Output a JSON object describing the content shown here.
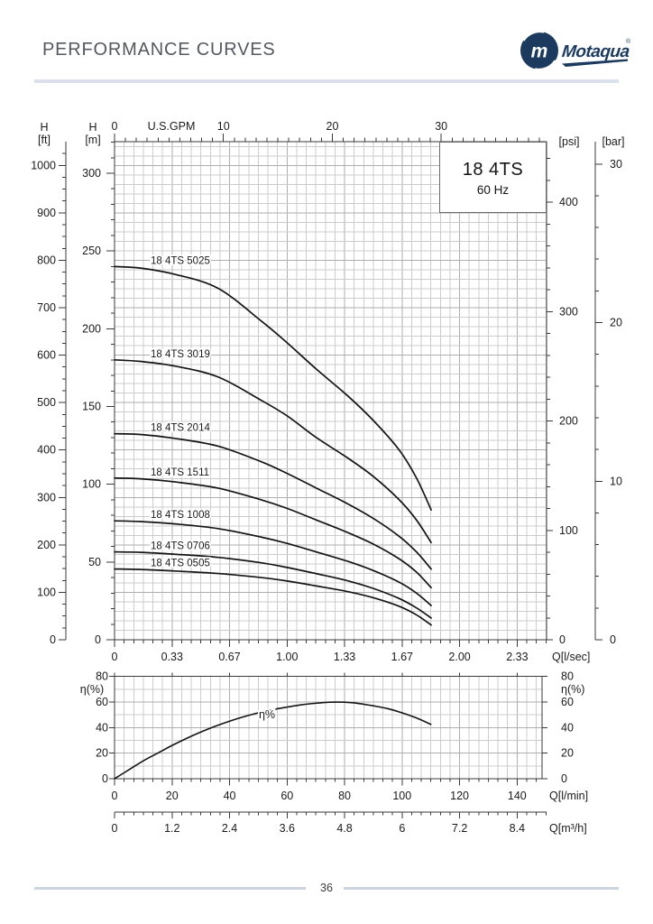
{
  "page": {
    "title": "PERFORMANCE CURVES",
    "page_number": "36"
  },
  "logo": {
    "brand": "Motaqua",
    "monogram": "m",
    "registered": "®"
  },
  "model_box": {
    "model": "18 4TS",
    "frequency": "60 Hz"
  },
  "colors": {
    "brand_navy": "#1b3a5e",
    "curve_black": "#141414",
    "grid_minor": "#cccccc",
    "grid_major": "#aeaeae",
    "axis_dark": "#3a3a3a",
    "divider": "#dbe1ea",
    "footer_line": "#cdd4e1",
    "title_gray": "#54585f",
    "ink": "#1a1a1a"
  },
  "chart_data": [
    {
      "id": "head_capacity",
      "type": "line",
      "title": "18 4TS 60 Hz head-capacity curves",
      "grid": true,
      "legend_position": "inline-labels",
      "x_axes": {
        "gpm": {
          "label": "U.S.GPM",
          "ticks": [
            0,
            10,
            20,
            30
          ],
          "minor_step": 1,
          "range": [
            0,
            39.7
          ]
        },
        "lps": {
          "label": "Q[l/sec]",
          "ticks": [
            "0",
            "0.33",
            "0.67",
            "1.00",
            "1.33",
            "1.67",
            "2.00",
            "2.33"
          ],
          "tick_step": 0.3333,
          "range": [
            0,
            2.5
          ]
        }
      },
      "y_axes": {
        "ft": {
          "label_top": "H",
          "label_unit": "[ft]",
          "ticks": [
            0,
            100,
            200,
            300,
            400,
            500,
            600,
            700,
            800,
            900,
            1000
          ],
          "minor_step": 25,
          "range": [
            0,
            1050
          ]
        },
        "m": {
          "label_top": "H",
          "label_unit": "[m]",
          "ticks": [
            0,
            50,
            100,
            150,
            200,
            250,
            300
          ],
          "minor_step": 10,
          "range": [
            0,
            320
          ]
        },
        "psi": {
          "label_unit": "[psi]",
          "ticks": [
            0,
            100,
            200,
            300,
            400
          ],
          "minor_step": 20,
          "range": [
            0,
            455
          ]
        },
        "bar": {
          "label_unit": "[bar]",
          "ticks": [
            0,
            10,
            20,
            30
          ],
          "minor_step": 2,
          "range": [
            0,
            31.4
          ]
        }
      },
      "series": [
        {
          "name": "18 4TS 5025",
          "points_lps_m": [
            [
              0,
              240
            ],
            [
              0.15,
              239
            ],
            [
              0.35,
              235
            ],
            [
              0.6,
              226
            ],
            [
              0.85,
              205
            ],
            [
              1.0,
              191
            ],
            [
              1.17,
              174
            ],
            [
              1.35,
              157
            ],
            [
              1.5,
              141
            ],
            [
              1.65,
              122
            ],
            [
              1.75,
              104
            ],
            [
              1.835,
              83.5
            ]
          ]
        },
        {
          "name": "18 4TS 3019",
          "points_lps_m": [
            [
              0,
              180
            ],
            [
              0.15,
              179
            ],
            [
              0.35,
              176
            ],
            [
              0.6,
              169
            ],
            [
              0.85,
              154
            ],
            [
              1.0,
              144
            ],
            [
              1.17,
              130
            ],
            [
              1.35,
              117
            ],
            [
              1.5,
              105
            ],
            [
              1.65,
              90
            ],
            [
              1.75,
              77
            ],
            [
              1.835,
              62.5
            ]
          ]
        },
        {
          "name": "18 4TS 2014",
          "points_lps_m": [
            [
              0,
              132.5
            ],
            [
              0.15,
              132
            ],
            [
              0.35,
              129.5
            ],
            [
              0.6,
              124.5
            ],
            [
              0.85,
              114.5
            ],
            [
              1.0,
              107
            ],
            [
              1.17,
              97.5
            ],
            [
              1.35,
              87.5
            ],
            [
              1.5,
              78
            ],
            [
              1.65,
              66.5
            ],
            [
              1.75,
              56.5
            ],
            [
              1.835,
              45.5
            ]
          ]
        },
        {
          "name": "18 4TS 1511",
          "points_lps_m": [
            [
              0,
              104
            ],
            [
              0.15,
              103.5
            ],
            [
              0.35,
              101.5
            ],
            [
              0.6,
              97.5
            ],
            [
              0.85,
              90
            ],
            [
              1.0,
              84.5
            ],
            [
              1.17,
              77
            ],
            [
              1.35,
              69
            ],
            [
              1.5,
              61.5
            ],
            [
              1.65,
              52
            ],
            [
              1.75,
              43.5
            ],
            [
              1.835,
              33.5
            ]
          ]
        },
        {
          "name": "18 4TS 1008",
          "points_lps_m": [
            [
              0,
              76.5
            ],
            [
              0.15,
              76
            ],
            [
              0.35,
              74.5
            ],
            [
              0.6,
              71.5
            ],
            [
              0.85,
              66
            ],
            [
              1.0,
              62
            ],
            [
              1.17,
              56.5
            ],
            [
              1.35,
              50.5
            ],
            [
              1.5,
              44.5
            ],
            [
              1.65,
              37
            ],
            [
              1.75,
              30
            ],
            [
              1.835,
              22
            ]
          ]
        },
        {
          "name": "18 4TS 0706",
          "points_lps_m": [
            [
              0,
              56.5
            ],
            [
              0.15,
              56.2
            ],
            [
              0.35,
              55
            ],
            [
              0.6,
              53
            ],
            [
              0.85,
              49.5
            ],
            [
              1.0,
              46.5
            ],
            [
              1.17,
              42.5
            ],
            [
              1.35,
              38
            ],
            [
              1.5,
              33
            ],
            [
              1.65,
              26.5
            ],
            [
              1.75,
              20.5
            ],
            [
              1.835,
              14
            ]
          ]
        },
        {
          "name": "18 4TS 0505",
          "points_lps_m": [
            [
              0,
              45.5
            ],
            [
              0.15,
              45.2
            ],
            [
              0.35,
              44.2
            ],
            [
              0.6,
              42.6
            ],
            [
              0.85,
              40
            ],
            [
              1.0,
              37.8
            ],
            [
              1.17,
              34.6
            ],
            [
              1.35,
              31
            ],
            [
              1.5,
              27
            ],
            [
              1.65,
              21.5
            ],
            [
              1.75,
              16
            ],
            [
              1.835,
              9.5
            ]
          ]
        }
      ]
    },
    {
      "id": "efficiency",
      "type": "line",
      "title": "Efficiency curve",
      "grid": true,
      "y_axis": {
        "label": "η(%)",
        "ticks": [
          0,
          20,
          40,
          60,
          80
        ],
        "minor_step": 10,
        "range": [
          0,
          80
        ]
      },
      "x_axes": {
        "lmin": {
          "label": "Q[l/min]",
          "ticks": [
            0,
            20,
            40,
            60,
            80,
            100,
            120,
            140
          ],
          "range": [
            0,
            148.7
          ]
        },
        "m3h": {
          "label": "Q[m³/h]",
          "ticks": [
            "0",
            "1.2",
            "2.4",
            "3.6",
            "4.8",
            "6",
            "7.2",
            "8.4"
          ],
          "tick_step": 1.2
        }
      },
      "series": [
        {
          "name": "η%",
          "points_lmin_pct": [
            [
              0,
              0
            ],
            [
              5,
              7
            ],
            [
              10,
              14
            ],
            [
              15,
              20
            ],
            [
              20,
              26
            ],
            [
              25,
              31.5
            ],
            [
              30,
              36.5
            ],
            [
              35,
              41
            ],
            [
              40,
              45
            ],
            [
              45,
              48.5
            ],
            [
              50,
              51.5
            ],
            [
              55,
              54
            ],
            [
              60,
              56
            ],
            [
              65,
              57.8
            ],
            [
              70,
              59
            ],
            [
              75,
              59.8
            ],
            [
              80,
              59.8
            ],
            [
              85,
              58.8
            ],
            [
              90,
              57
            ],
            [
              95,
              54.8
            ],
            [
              100,
              51.5
            ],
            [
              105,
              47.5
            ],
            [
              110,
              42.5
            ]
          ]
        }
      ]
    }
  ]
}
